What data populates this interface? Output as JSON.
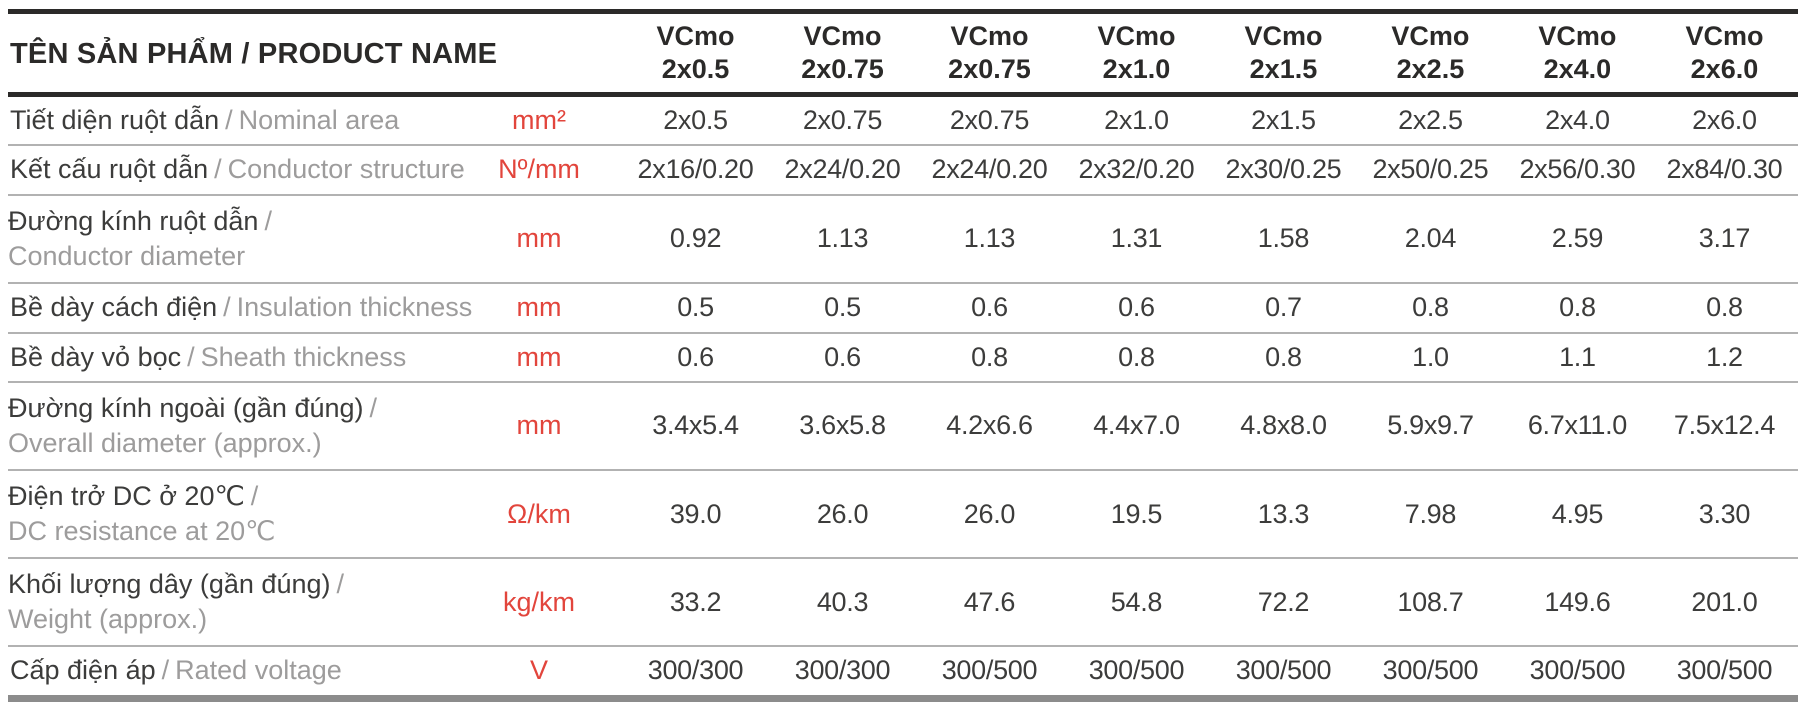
{
  "table": {
    "title": "TÊN SẢN PHẨM / PRODUCT NAME",
    "label_separator": "/",
    "columns": [
      {
        "model": "VCmo",
        "size": "2x0.5"
      },
      {
        "model": "VCmo",
        "size": "2x0.75"
      },
      {
        "model": "VCmo",
        "size": "2x0.75"
      },
      {
        "model": "VCmo",
        "size": "2x1.0"
      },
      {
        "model": "VCmo",
        "size": "2x1.5"
      },
      {
        "model": "VCmo",
        "size": "2x2.5"
      },
      {
        "model": "VCmo",
        "size": "2x4.0"
      },
      {
        "model": "VCmo",
        "size": "2x6.0"
      }
    ],
    "rows": [
      {
        "label_vi": "Tiết diện ruột dẫn",
        "label_en": "Nominal area",
        "two_line": false,
        "unit": "mm²",
        "values": [
          "2x0.5",
          "2x0.75",
          "2x0.75",
          "2x1.0",
          "2x1.5",
          "2x2.5",
          "2x4.0",
          "2x6.0"
        ]
      },
      {
        "label_vi": "Kết cấu ruột dẫn",
        "label_en": "Conductor structure",
        "two_line": false,
        "unit": "Nº/mm",
        "values": [
          "2x16/0.20",
          "2x24/0.20",
          "2x24/0.20",
          "2x32/0.20",
          "2x30/0.25",
          "2x50/0.25",
          "2x56/0.30",
          "2x84/0.30"
        ]
      },
      {
        "label_vi": "Đường kính ruột dẫn",
        "label_en": "Conductor diameter",
        "two_line": true,
        "unit": "mm",
        "values": [
          "0.92",
          "1.13",
          "1.13",
          "1.31",
          "1.58",
          "2.04",
          "2.59",
          "3.17"
        ]
      },
      {
        "label_vi": "Bề dày cách điện",
        "label_en": "Insulation thickness",
        "two_line": false,
        "unit": "mm",
        "values": [
          "0.5",
          "0.5",
          "0.6",
          "0.6",
          "0.7",
          "0.8",
          "0.8",
          "0.8"
        ]
      },
      {
        "label_vi": "Bề dày vỏ bọc",
        "label_en": "Sheath thickness",
        "two_line": false,
        "unit": "mm",
        "values": [
          "0.6",
          "0.6",
          "0.8",
          "0.8",
          "0.8",
          "1.0",
          "1.1",
          "1.2"
        ]
      },
      {
        "label_vi": "Đường kính ngoài (gần đúng)",
        "label_en": "Overall diameter (approx.)",
        "two_line": true,
        "unit": "mm",
        "values": [
          "3.4x5.4",
          "3.6x5.8",
          "4.2x6.6",
          "4.4x7.0",
          "4.8x8.0",
          "5.9x9.7",
          "6.7x11.0",
          "7.5x12.4"
        ]
      },
      {
        "label_vi": "Điện trở DC ở 20℃",
        "label_en": "DC resistance at 20℃",
        "two_line": true,
        "unit": "Ω/km",
        "values": [
          "39.0",
          "26.0",
          "26.0",
          "19.5",
          "13.3",
          "7.98",
          "4.95",
          "3.30"
        ]
      },
      {
        "label_vi": "Khối lượng dây (gần đúng)",
        "label_en": "Weight (approx.)",
        "two_line": true,
        "unit": "kg/km",
        "values": [
          "33.2",
          "40.3",
          "47.6",
          "54.8",
          "72.2",
          "108.7",
          "149.6",
          "201.0"
        ]
      },
      {
        "label_vi": "Cấp điện áp",
        "label_en": "Rated voltage",
        "two_line": false,
        "unit": "V",
        "values": [
          "300/300",
          "300/300",
          "300/500",
          "300/500",
          "300/500",
          "300/500",
          "300/500",
          "300/500"
        ]
      }
    ],
    "colors": {
      "unit_red": "#e2453c",
      "text_dark": "#3c3c3b",
      "text_gray": "#9d9c9c",
      "rule_black": "#2b2a29",
      "rule_gray": "#b2b2b2",
      "bottom_bar_gray": "#8c8c8c"
    }
  }
}
